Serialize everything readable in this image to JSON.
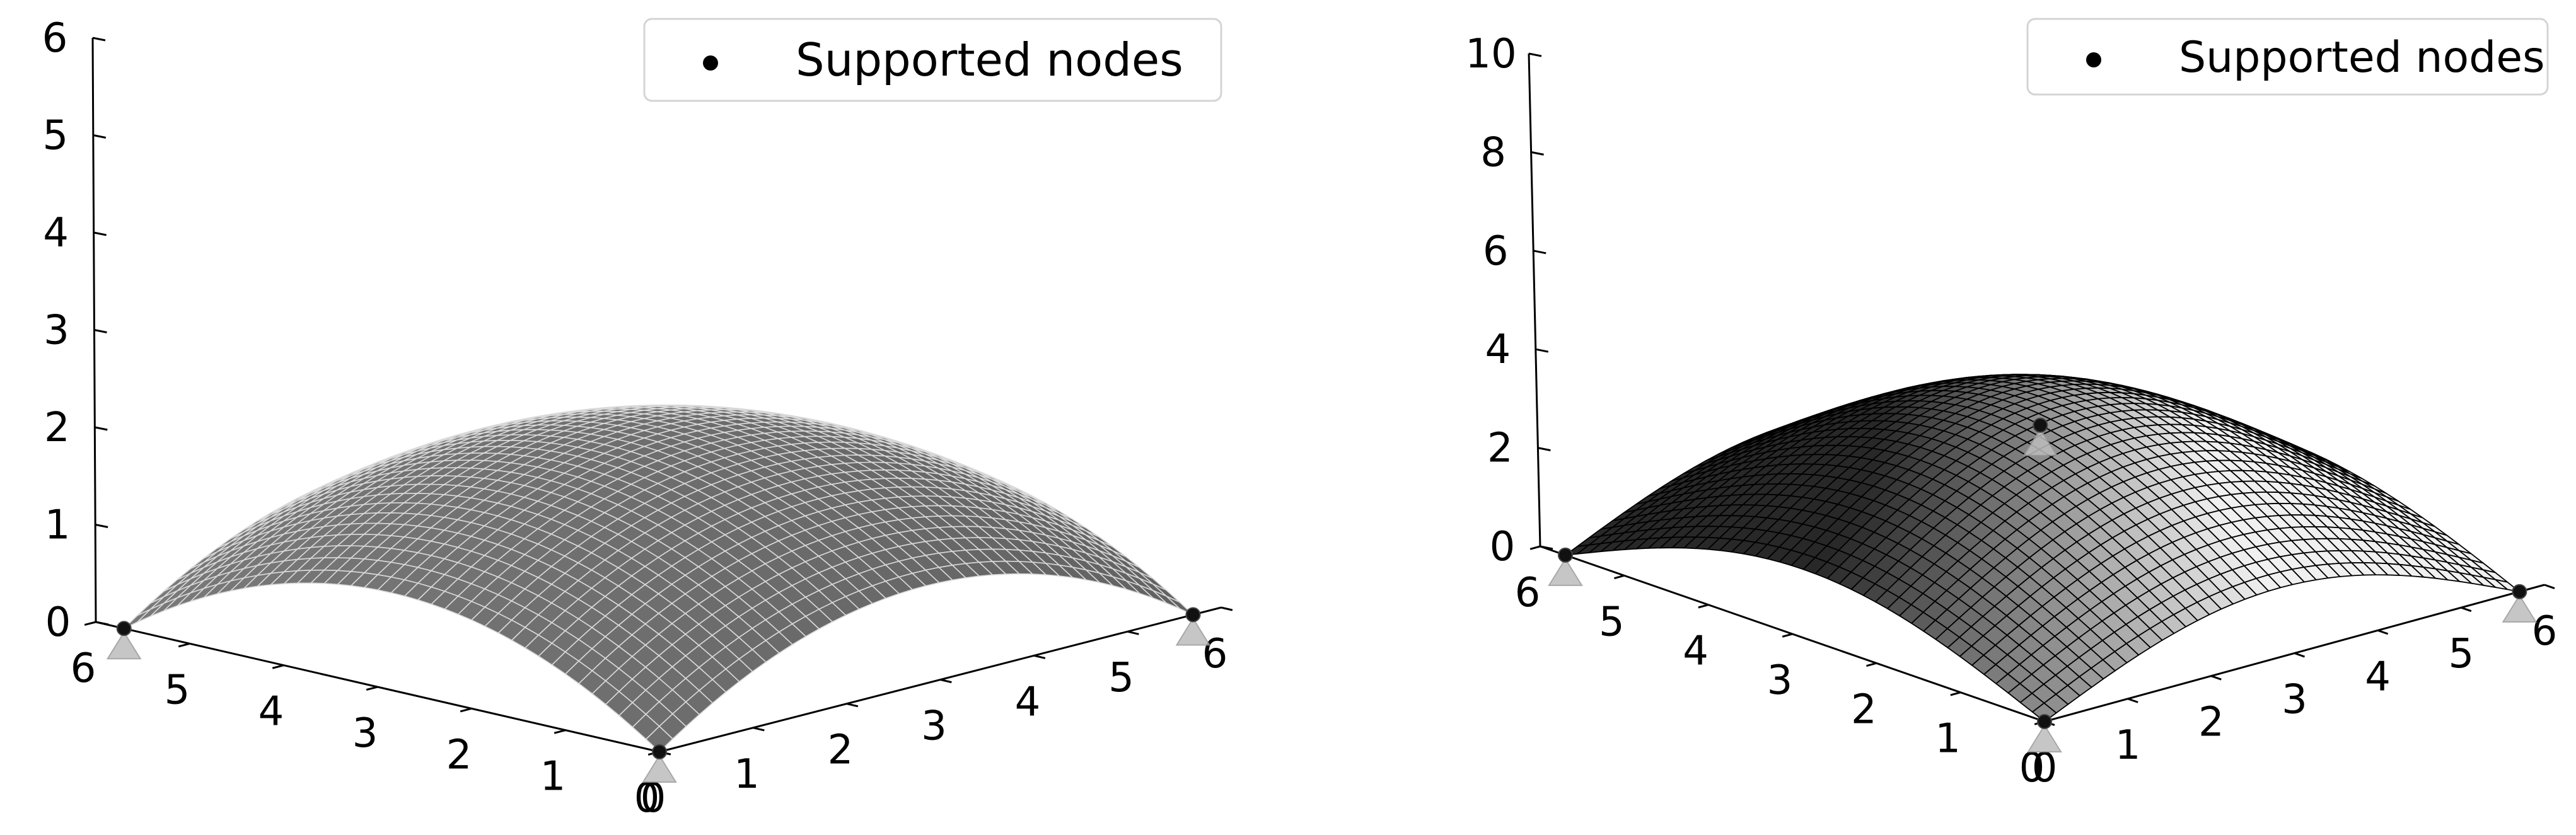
{
  "chart_data": [
    {
      "type": "surface3d",
      "x": {
        "ticks": [
          0,
          1,
          2,
          3,
          4,
          5,
          6
        ],
        "range": [
          0,
          6
        ]
      },
      "y": {
        "ticks": [
          0,
          1,
          2,
          3,
          4,
          5,
          6
        ],
        "range": [
          0,
          6
        ]
      },
      "z": {
        "ticks": [
          0,
          1,
          2,
          3,
          4,
          5,
          6
        ],
        "range": [
          0,
          6
        ]
      },
      "surface": {
        "shape": "dome",
        "peak_height": 2.0,
        "grid_lines": 40,
        "color": "#808080",
        "edge_color": "#d9d9d9"
      },
      "supports": [
        [
          5.7,
          0,
          0
        ],
        [
          0,
          5.7,
          0
        ],
        [
          0,
          0,
          0
        ]
      ],
      "support_marker_color": "#bdbdbd",
      "legend": {
        "labels": [
          "Supported nodes"
        ],
        "placement": "top-right"
      }
    },
    {
      "type": "surface3d",
      "x": {
        "ticks": [
          0,
          1,
          2,
          3,
          4,
          5,
          6
        ],
        "range": [
          0,
          6
        ]
      },
      "y": {
        "ticks": [
          0,
          1,
          2,
          3,
          4,
          5,
          6
        ],
        "range": [
          0,
          6
        ]
      },
      "z": {
        "ticks": [
          0,
          2,
          4,
          6,
          8,
          10
        ],
        "range": [
          0,
          10
        ]
      },
      "surface": {
        "shape": "saddle-ridged",
        "peak_height": 4.0,
        "grid_lines": 40,
        "color": "#e8e8e8",
        "edge_color": "#000000"
      },
      "supports": [
        [
          5.7,
          0,
          0
        ],
        [
          0,
          5.7,
          0
        ],
        [
          0,
          0,
          0
        ],
        [
          5.7,
          5.7,
          0
        ]
      ],
      "support_marker_color": "#bdbdbd",
      "legend": {
        "labels": [
          "Supported nodes"
        ],
        "placement": "top-right"
      }
    }
  ]
}
